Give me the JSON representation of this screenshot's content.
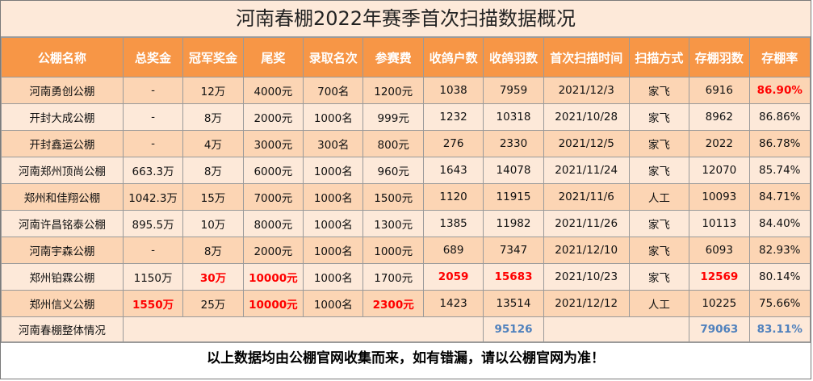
{
  "title": "河南春棚2022年赛季首次扫描数据概况",
  "headers": [
    "公棚名称",
    "总奖金",
    "冠军奖金",
    "尾奖",
    "录取名次",
    "参赛费",
    "收鸽户数",
    "收鸽羽数",
    "首次扫描时间",
    "扫描方式",
    "存棚羽数",
    "存棚率"
  ],
  "rows": [
    [
      "河南勇创公棚",
      "-",
      "12万",
      "4000元",
      "700名",
      "1200元",
      "1038",
      "7959",
      "2021/12/3",
      "家飞",
      "6916",
      "86.90%"
    ],
    [
      "开封大成公棚",
      "-",
      "8万",
      "2000元",
      "1000名",
      "999元",
      "1232",
      "10318",
      "2021/10/28",
      "家飞",
      "8962",
      "86.86%"
    ],
    [
      "开封鑫运公棚",
      "-",
      "4万",
      "3000元",
      "300名",
      "800元",
      "276",
      "2330",
      "2021/12/5",
      "家飞",
      "2022",
      "86.78%"
    ],
    [
      "河南郑州顶尚公棚",
      "663.3万",
      "8万",
      "6000元",
      "1000名",
      "960元",
      "1643",
      "14078",
      "2021/11/24",
      "家飞",
      "12070",
      "85.74%"
    ],
    [
      "郑州和佳翔公棚",
      "1042.3万",
      "15万",
      "7000元",
      "1000名",
      "1500元",
      "1120",
      "11915",
      "2021/11/6",
      "人工",
      "10093",
      "84.71%"
    ],
    [
      "河南许昌铭泰公棚",
      "895.5万",
      "10万",
      "8000元",
      "1000名",
      "1300元",
      "1385",
      "11982",
      "2021/11/26",
      "家飞",
      "10113",
      "84.40%"
    ],
    [
      "河南宇森公棚",
      "-",
      "8万",
      "2000元",
      "1000名",
      "1000元",
      "689",
      "7347",
      "2021/12/10",
      "家飞",
      "6093",
      "82.93%"
    ],
    [
      "郑州铂霖公棚",
      "1150万",
      "30万",
      "10000元",
      "1000名",
      "1700元",
      "2059",
      "15683",
      "2021/10/23",
      "家飞",
      "12569",
      "80.14%"
    ],
    [
      "郑州信义公棚",
      "1550万",
      "25万",
      "10000元",
      "1000名",
      "2300元",
      "1423",
      "13514",
      "2021/12/12",
      "人工",
      "10225",
      "75.66%"
    ]
  ],
  "highlights": [
    [
      0,
      11
    ],
    [
      7,
      2
    ],
    [
      7,
      3
    ],
    [
      7,
      6
    ],
    [
      7,
      7
    ],
    [
      7,
      10
    ],
    [
      8,
      1
    ],
    [
      8,
      3
    ],
    [
      8,
      5
    ]
  ],
  "summary": {
    "label": "河南春棚整体情况",
    "total_birds": "95126",
    "total_stored": "79063",
    "overall_rate": "83.11%"
  },
  "footer": "以上数据均由公棚官网收集而来，如有错漏，请以公棚官网为准！",
  "colors": {
    "header_bg": "#f79646",
    "row_odd_bg": "#fcd5b4",
    "row_even_bg": "#fde9d9",
    "highlight_red": "#ff0000",
    "summary_blue": "#4f81bd"
  }
}
